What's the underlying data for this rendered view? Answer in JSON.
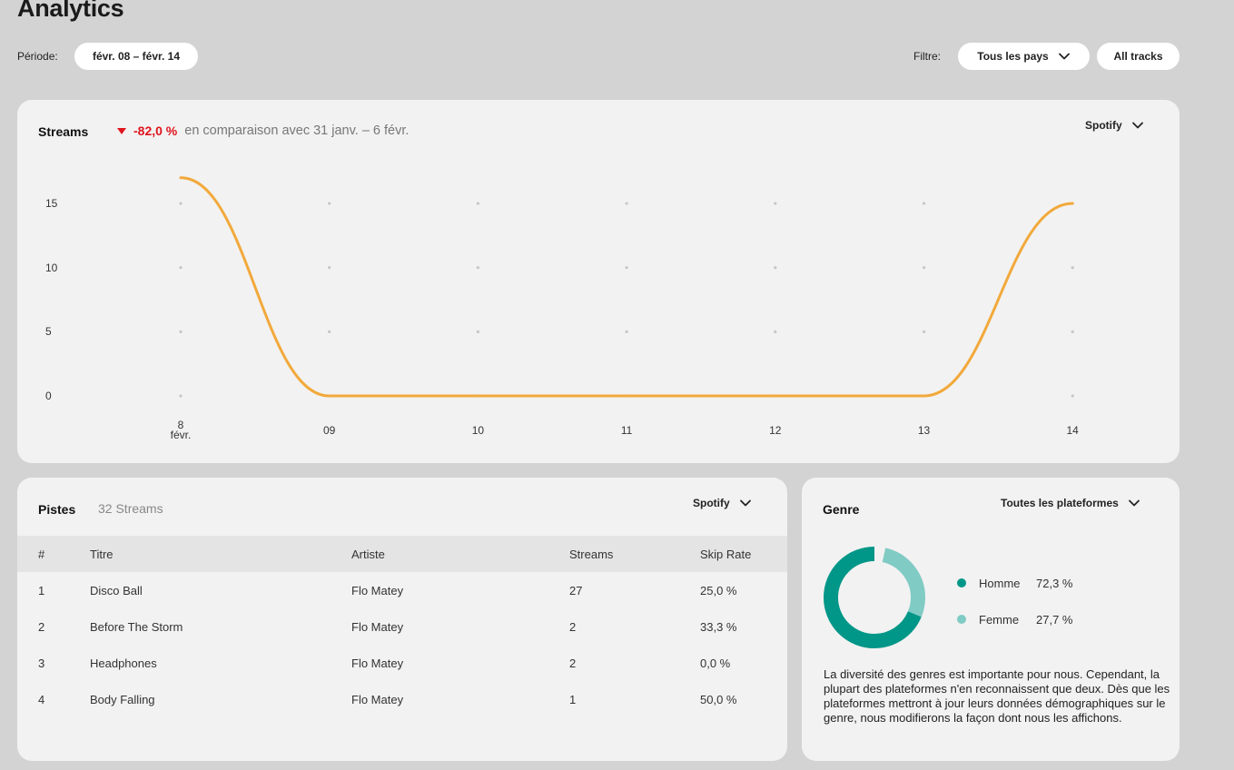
{
  "page": {
    "title": "Analytics"
  },
  "filters": {
    "period_label": "Période:",
    "period_value": "févr. 08 – févr. 14",
    "filter_label": "Filtre:",
    "country_value": "Tous les pays",
    "tracks_value": "All tracks"
  },
  "streams_card": {
    "title": "Streams",
    "delta": "-82,0 %",
    "comparison": "en comparaison avec 31 janv. – 6 févr.",
    "platform": "Spotify"
  },
  "chart_data": {
    "type": "line",
    "x": [
      "8",
      "09",
      "10",
      "11",
      "12",
      "13",
      "14"
    ],
    "x_first_sublabel": "févr.",
    "series": [
      {
        "values": [
          17,
          0,
          0,
          0,
          0,
          0,
          15
        ],
        "color": "#f2a93b"
      }
    ],
    "y_ticks": [
      "0",
      "5",
      "10",
      "15"
    ],
    "ylim": [
      0,
      17
    ],
    "grid": "dotted"
  },
  "tracks_card": {
    "title": "Pistes",
    "count": "32 Streams",
    "platform": "Spotify",
    "columns": [
      "#",
      "Titre",
      "Artiste",
      "Streams",
      "Skip Rate"
    ],
    "rows": [
      [
        "1",
        "Disco Ball",
        "Flo Matey",
        "27",
        "25,0 %"
      ],
      [
        "2",
        "Before The Storm",
        "Flo Matey",
        "2",
        "33,3 %"
      ],
      [
        "3",
        "Headphones",
        "Flo Matey",
        "2",
        "0,0 %"
      ],
      [
        "4",
        "Body Falling",
        "Flo Matey",
        "1",
        "50,0 %"
      ]
    ]
  },
  "genre_card": {
    "title": "Genre",
    "platform": "Toutes les plateformes",
    "male_label": "Homme",
    "male_value": "72,3 %",
    "male_fraction": 0.723,
    "male_color": "#009688",
    "female_label": "Femme",
    "female_value": "27,7 %",
    "female_fraction": 0.277,
    "female_color": "#80cbc4",
    "note": "La diversité des genres est importante pour nous. Cependant, la plupart des plateformes n'en reconnaissent que deux. Dès que les plateformes mettront à jour leurs données démographiques sur le genre, nous modifierons la façon dont nous les affichons."
  },
  "icons": {
    "dropdown": "chevron-down-icon",
    "delta": "triangle-down-icon"
  }
}
